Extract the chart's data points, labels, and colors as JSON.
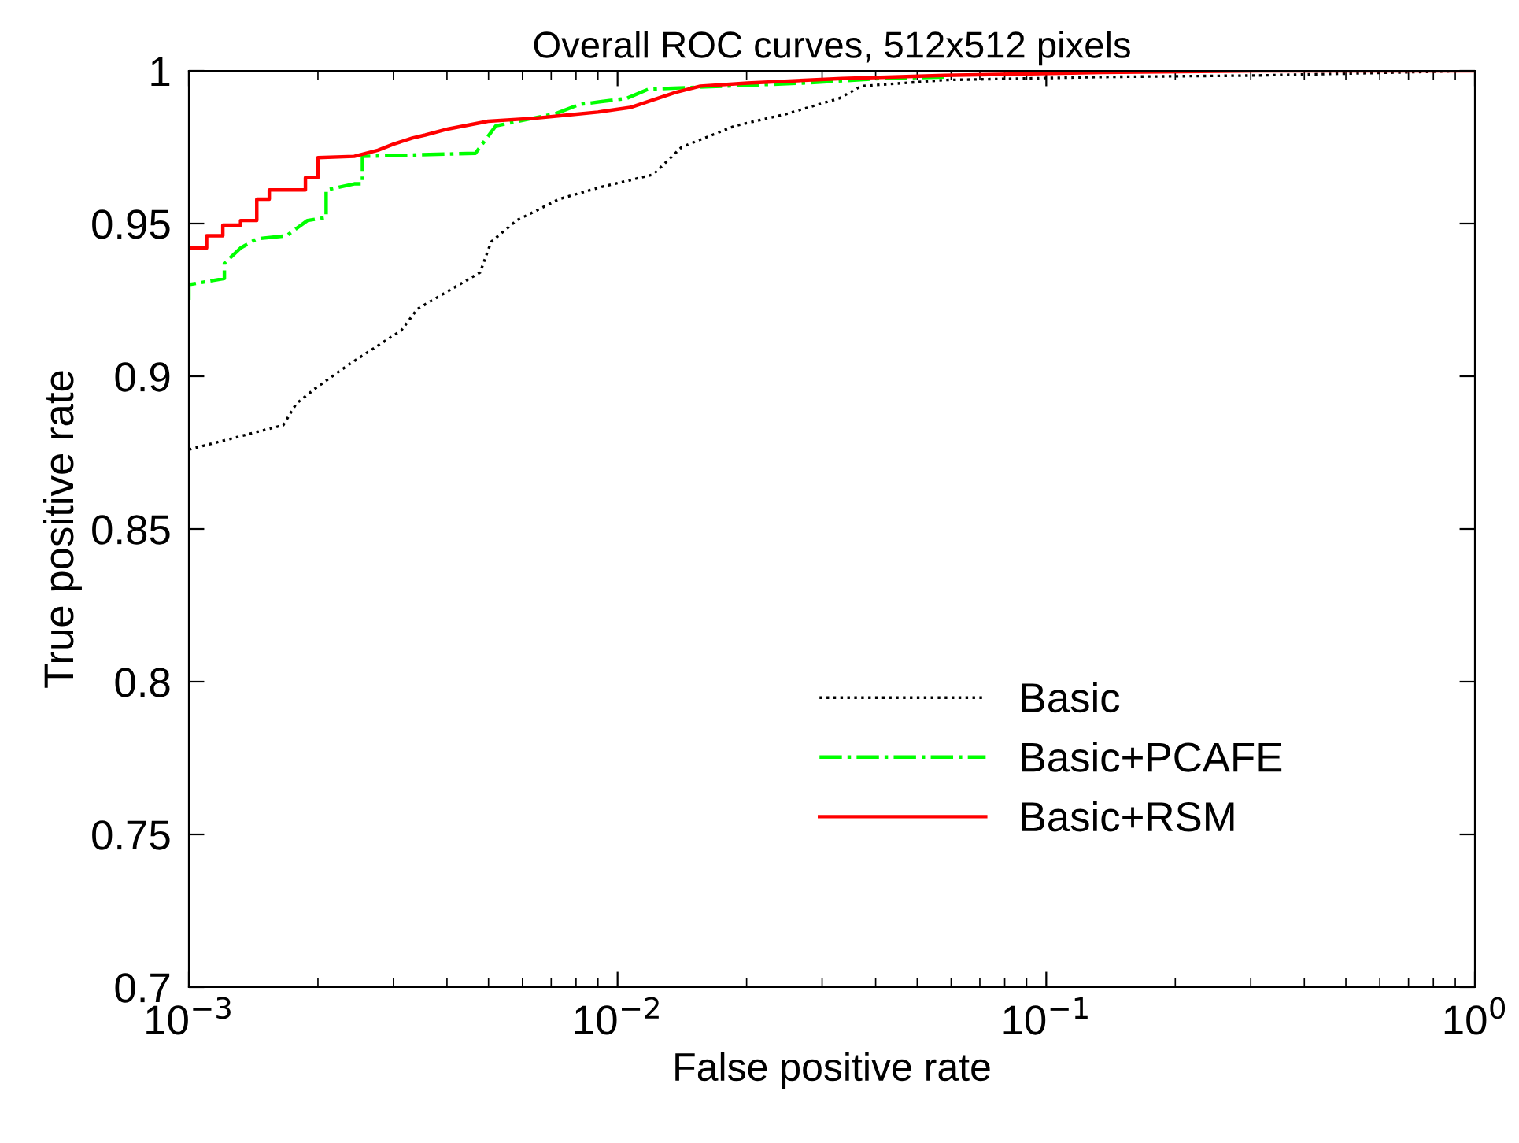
{
  "chart_data": {
    "type": "line",
    "title": "Overall ROC curves, 512x512 pixels",
    "xlabel": "False positive rate",
    "ylabel": "True positive rate",
    "log": "x",
    "xlim": [
      0.001,
      1
    ],
    "xticks": [
      {
        "value": 0.001,
        "label": "10$^{−3}$"
      },
      {
        "value": 0.01,
        "label": "10$^{−2}$"
      },
      {
        "value": 0.1,
        "label": "10$^{−1}$"
      },
      {
        "value": 1,
        "label": "10$^{0}$"
      }
    ],
    "ylim": [
      0.7,
      1
    ],
    "yticks": [
      0.7,
      0.75,
      0.8,
      0.85,
      0.9,
      0.95,
      1
    ],
    "grid": false,
    "legend": "bottom right",
    "series": [
      {
        "name": "Basic",
        "color": "#000000",
        "line_style": "dotted",
        "x": [
          0.001,
          0.00166,
          0.00178,
          0.00197,
          0.00237,
          0.00313,
          0.00341,
          0.00478,
          0.00507,
          0.00581,
          0.0073,
          0.00916,
          0.0121,
          0.0141,
          0.0188,
          0.0249,
          0.0329,
          0.037,
          0.058,
          0.135,
          0.314,
          1
        ],
        "values": [
          0.876,
          0.884,
          0.891,
          0.896,
          0.904,
          0.915,
          0.922,
          0.934,
          0.944,
          0.951,
          0.958,
          0.962,
          0.966,
          0.975,
          0.982,
          0.986,
          0.991,
          0.995,
          0.997,
          0.998,
          0.9985,
          1
        ]
      },
      {
        "name": "Basic+PCAFE",
        "color": "#00ff00",
        "line_style": "dashdot",
        "x": [
          0.001,
          0.001,
          0.00121,
          0.00121,
          0.00132,
          0.00144,
          0.00169,
          0.00189,
          0.00209,
          0.00209,
          0.00243,
          0.00254,
          0.00254,
          0.00466,
          0.0052,
          0.00717,
          0.00814,
          0.0105,
          0.0118,
          0.0177,
          0.027,
          0.0413,
          0.058
        ],
        "values": [
          0.925,
          0.93,
          0.932,
          0.937,
          0.942,
          0.945,
          0.946,
          0.951,
          0.952,
          0.961,
          0.963,
          0.963,
          0.972,
          0.973,
          0.982,
          0.986,
          0.989,
          0.991,
          0.994,
          0.995,
          0.996,
          0.9975,
          0.998
        ]
      },
      {
        "name": "Basic+RSM",
        "color": "#ff0000",
        "line_style": "solid",
        "x": [
          0.001,
          0.0011,
          0.0011,
          0.0012,
          0.0012,
          0.00132,
          0.00132,
          0.00144,
          0.00144,
          0.00154,
          0.00154,
          0.00187,
          0.00187,
          0.002,
          0.002,
          0.00243,
          0.00276,
          0.003,
          0.00332,
          0.00356,
          0.00403,
          0.00499,
          0.00643,
          0.0076,
          0.009,
          0.0107,
          0.0121,
          0.0137,
          0.0156,
          0.0201,
          0.0334,
          0.058,
          0.135,
          0.314,
          1
        ],
        "values": [
          0.942,
          0.942,
          0.946,
          0.946,
          0.9495,
          0.9495,
          0.951,
          0.951,
          0.958,
          0.958,
          0.961,
          0.961,
          0.965,
          0.965,
          0.9716,
          0.972,
          0.974,
          0.976,
          0.978,
          0.979,
          0.981,
          0.9835,
          0.9845,
          0.9855,
          0.9865,
          0.988,
          0.9905,
          0.993,
          0.995,
          0.996,
          0.9975,
          0.9985,
          0.9995,
          1,
          1
        ]
      }
    ]
  }
}
